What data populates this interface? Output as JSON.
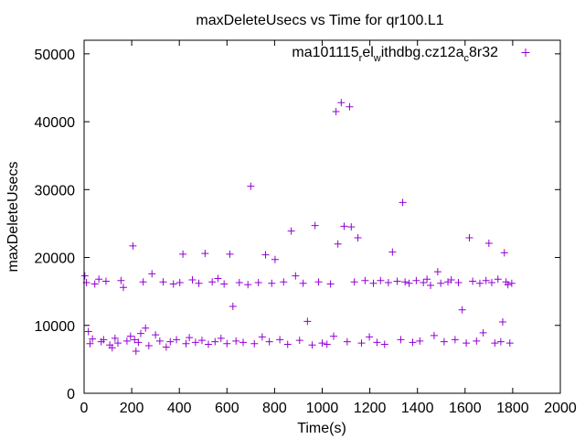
{
  "chart_data": {
    "type": "scatter",
    "title": "maxDeleteUsecs vs Time for qr100.L1",
    "xlabel": "Time(s)",
    "ylabel": "maxDeleteUsecs",
    "xlim": [
      0,
      2000
    ],
    "ylim": [
      0,
      52000
    ],
    "x_ticks": [
      "0",
      "200",
      "400",
      "600",
      "800",
      "1000",
      "1200",
      "1400",
      "1600",
      "1800",
      "2000"
    ],
    "y_ticks": [
      "0",
      "10000",
      "20000",
      "30000",
      "40000",
      "50000"
    ],
    "grid": false,
    "legend_position": "top-right",
    "marker": "+",
    "color": "#9400d3",
    "series": [
      {
        "name": "ma101115_rel_withdbg.cz12a_c8r32",
        "legend_parts": {
          "base": "ma101115",
          "sub1": "r",
          "mid": "el",
          "sub2": "w",
          "mid2": "ithdbg.cz12a",
          "sub3": "c",
          "end": "8r32"
        },
        "points": [
          [
            3,
            17300
          ],
          [
            10,
            16300
          ],
          [
            18,
            9100
          ],
          [
            25,
            7300
          ],
          [
            35,
            8000
          ],
          [
            45,
            16100
          ],
          [
            62,
            16800
          ],
          [
            72,
            7600
          ],
          [
            82,
            7900
          ],
          [
            92,
            16500
          ],
          [
            108,
            7100
          ],
          [
            118,
            6700
          ],
          [
            130,
            8100
          ],
          [
            142,
            7400
          ],
          [
            155,
            16600
          ],
          [
            165,
            15600
          ],
          [
            180,
            7700
          ],
          [
            195,
            8400
          ],
          [
            205,
            21700
          ],
          [
            212,
            7900
          ],
          [
            218,
            6200
          ],
          [
            228,
            7500
          ],
          [
            238,
            8800
          ],
          [
            248,
            16400
          ],
          [
            258,
            9600
          ],
          [
            272,
            7000
          ],
          [
            285,
            17600
          ],
          [
            300,
            8600
          ],
          [
            318,
            7700
          ],
          [
            332,
            16400
          ],
          [
            345,
            6800
          ],
          [
            362,
            7600
          ],
          [
            375,
            16100
          ],
          [
            388,
            7900
          ],
          [
            402,
            16300
          ],
          [
            415,
            20500
          ],
          [
            428,
            7300
          ],
          [
            442,
            8200
          ],
          [
            455,
            16700
          ],
          [
            468,
            7500
          ],
          [
            482,
            16200
          ],
          [
            495,
            7800
          ],
          [
            508,
            20600
          ],
          [
            522,
            7200
          ],
          [
            538,
            16400
          ],
          [
            550,
            7600
          ],
          [
            562,
            16900
          ],
          [
            575,
            8100
          ],
          [
            588,
            16100
          ],
          [
            600,
            7300
          ],
          [
            612,
            20500
          ],
          [
            625,
            12800
          ],
          [
            638,
            7700
          ],
          [
            652,
            16300
          ],
          [
            668,
            7500
          ],
          [
            688,
            16000
          ],
          [
            700,
            30500
          ],
          [
            715,
            7300
          ],
          [
            732,
            16300
          ],
          [
            748,
            8300
          ],
          [
            762,
            20400
          ],
          [
            778,
            7600
          ],
          [
            788,
            16200
          ],
          [
            802,
            19700
          ],
          [
            822,
            7900
          ],
          [
            838,
            16400
          ],
          [
            855,
            7200
          ],
          [
            870,
            23900
          ],
          [
            888,
            17300
          ],
          [
            905,
            7800
          ],
          [
            920,
            16200
          ],
          [
            938,
            10600
          ],
          [
            958,
            7100
          ],
          [
            970,
            24700
          ],
          [
            985,
            16400
          ],
          [
            1000,
            7400
          ],
          [
            1020,
            7200
          ],
          [
            1035,
            16100
          ],
          [
            1048,
            8400
          ],
          [
            1058,
            41500
          ],
          [
            1066,
            22000
          ],
          [
            1080,
            42800
          ],
          [
            1092,
            24600
          ],
          [
            1105,
            7600
          ],
          [
            1115,
            42200
          ],
          [
            1122,
            24500
          ],
          [
            1135,
            16400
          ],
          [
            1150,
            22900
          ],
          [
            1165,
            7400
          ],
          [
            1180,
            16600
          ],
          [
            1198,
            8300
          ],
          [
            1215,
            16200
          ],
          [
            1230,
            7500
          ],
          [
            1245,
            16600
          ],
          [
            1262,
            7200
          ],
          [
            1278,
            16300
          ],
          [
            1295,
            20800
          ],
          [
            1315,
            16500
          ],
          [
            1330,
            7900
          ],
          [
            1338,
            28100
          ],
          [
            1348,
            16400
          ],
          [
            1365,
            16200
          ],
          [
            1380,
            7500
          ],
          [
            1395,
            16600
          ],
          [
            1410,
            7700
          ],
          [
            1425,
            16300
          ],
          [
            1440,
            16800
          ],
          [
            1455,
            15900
          ],
          [
            1470,
            8500
          ],
          [
            1485,
            17900
          ],
          [
            1498,
            16200
          ],
          [
            1512,
            7600
          ],
          [
            1528,
            16400
          ],
          [
            1542,
            16700
          ],
          [
            1558,
            7900
          ],
          [
            1572,
            16300
          ],
          [
            1588,
            12300
          ],
          [
            1605,
            7400
          ],
          [
            1618,
            22900
          ],
          [
            1632,
            16500
          ],
          [
            1648,
            7700
          ],
          [
            1662,
            16200
          ],
          [
            1676,
            8900
          ],
          [
            1688,
            16600
          ],
          [
            1700,
            22100
          ],
          [
            1712,
            16300
          ],
          [
            1725,
            7400
          ],
          [
            1738,
            16800
          ],
          [
            1750,
            7600
          ],
          [
            1758,
            10500
          ],
          [
            1765,
            20700
          ],
          [
            1772,
            16400
          ],
          [
            1780,
            16000
          ],
          [
            1788,
            7400
          ],
          [
            1796,
            16200
          ]
        ]
      }
    ]
  }
}
